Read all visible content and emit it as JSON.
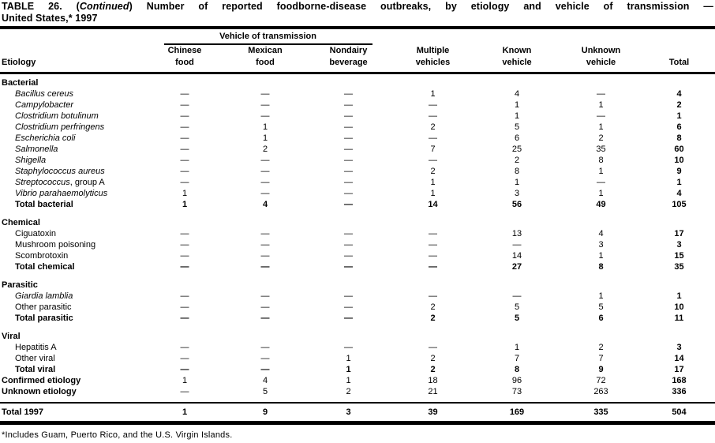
{
  "title": {
    "line1_prefix": "TABLE 26. (",
    "line1_continued": "Continued",
    "line1_suffix": ") Number of reported foodborne-disease outbreaks, by etiology and vehicle of transmission —",
    "line2": "United States,* 1997"
  },
  "header": {
    "spanner": "Vehicle of transmission",
    "etiology": "Etiology",
    "total": "Total",
    "columns": [
      {
        "key": "chinese-food",
        "line1": "Chinese",
        "line2": "food"
      },
      {
        "key": "mexican-food",
        "line1": "Mexican",
        "line2": "food"
      },
      {
        "key": "nondairy-beverage",
        "line1": "Nondairy",
        "line2": "beverage"
      },
      {
        "key": "multiple-vehicles",
        "line1": "Multiple",
        "line2": "vehicles"
      },
      {
        "key": "known-vehicle",
        "line1": "Known",
        "line2": "vehicle"
      },
      {
        "key": "unknown-vehicle",
        "line1": "Unknown",
        "line2": "vehicle"
      }
    ]
  },
  "sections": [
    {
      "label": "Bacterial",
      "rows": [
        {
          "label": "Bacillus cereus",
          "italic": true,
          "bold": false,
          "values": [
            "—",
            "—",
            "—",
            "1",
            "4",
            "—",
            "4"
          ]
        },
        {
          "label": "Campylobacter",
          "italic": true,
          "bold": false,
          "values": [
            "—",
            "—",
            "—",
            "—",
            "1",
            "1",
            "2"
          ]
        },
        {
          "label": "Clostridium botulinum",
          "italic": true,
          "bold": false,
          "values": [
            "—",
            "—",
            "—",
            "—",
            "1",
            "—",
            "1"
          ]
        },
        {
          "label": "Clostridium perfringens",
          "italic": true,
          "bold": false,
          "values": [
            "—",
            "1",
            "—",
            "2",
            "5",
            "1",
            "6"
          ]
        },
        {
          "label": "Escherichia coli",
          "italic": true,
          "bold": false,
          "values": [
            "—",
            "1",
            "—",
            "—",
            "6",
            "2",
            "8"
          ]
        },
        {
          "label": "Salmonella",
          "italic": true,
          "bold": false,
          "values": [
            "—",
            "2",
            "—",
            "7",
            "25",
            "35",
            "60"
          ]
        },
        {
          "label": "Shigella",
          "italic": true,
          "bold": false,
          "values": [
            "—",
            "—",
            "—",
            "—",
            "2",
            "8",
            "10"
          ]
        },
        {
          "label": "Staphylococcus aureus",
          "italic": true,
          "bold": false,
          "values": [
            "—",
            "—",
            "—",
            "2",
            "8",
            "1",
            "9"
          ]
        },
        {
          "label": "Streptococcus",
          "suffix": ", group A",
          "italic": true,
          "bold": false,
          "values": [
            "—",
            "—",
            "—",
            "1",
            "1",
            "—",
            "1"
          ]
        },
        {
          "label": "Vibrio parahaemolyticus",
          "italic": true,
          "bold": false,
          "values": [
            "1",
            "—",
            "—",
            "1",
            "3",
            "1",
            "4"
          ]
        },
        {
          "label": "Total bacterial",
          "italic": false,
          "bold": true,
          "values": [
            "1",
            "4",
            "—",
            "14",
            "56",
            "49",
            "105"
          ]
        }
      ]
    },
    {
      "label": "Chemical",
      "rows": [
        {
          "label": "Ciguatoxin",
          "italic": false,
          "bold": false,
          "values": [
            "—",
            "—",
            "—",
            "—",
            "13",
            "4",
            "17"
          ]
        },
        {
          "label": "Mushroom poisoning",
          "italic": false,
          "bold": false,
          "values": [
            "—",
            "—",
            "—",
            "—",
            "—",
            "3",
            "3"
          ]
        },
        {
          "label": "Scombrotoxin",
          "italic": false,
          "bold": false,
          "values": [
            "—",
            "—",
            "—",
            "—",
            "14",
            "1",
            "15"
          ]
        },
        {
          "label": "Total chemical",
          "italic": false,
          "bold": true,
          "values": [
            "—",
            "—",
            "—",
            "—",
            "27",
            "8",
            "35"
          ]
        }
      ]
    },
    {
      "label": "Parasitic",
      "rows": [
        {
          "label": "Giardia lamblia",
          "italic": true,
          "bold": false,
          "values": [
            "—",
            "—",
            "—",
            "—",
            "—",
            "1",
            "1"
          ]
        },
        {
          "label": "Other parasitic",
          "italic": false,
          "bold": false,
          "values": [
            "—",
            "—",
            "—",
            "2",
            "5",
            "5",
            "10"
          ]
        },
        {
          "label": "Total parasitic",
          "italic": false,
          "bold": true,
          "values": [
            "—",
            "—",
            "—",
            "2",
            "5",
            "6",
            "11"
          ]
        }
      ]
    },
    {
      "label": "Viral",
      "rows": [
        {
          "label": "Hepatitis A",
          "italic": false,
          "bold": false,
          "values": [
            "—",
            "—",
            "—",
            "—",
            "1",
            "2",
            "3"
          ]
        },
        {
          "label": "Other viral",
          "italic": false,
          "bold": false,
          "values": [
            "—",
            "—",
            "1",
            "2",
            "7",
            "7",
            "14"
          ]
        },
        {
          "label": "Total viral",
          "italic": false,
          "bold": true,
          "values": [
            "—",
            "—",
            "1",
            "2",
            "8",
            "9",
            "17"
          ]
        }
      ]
    }
  ],
  "summary_rows": [
    {
      "label": "Confirmed etiology",
      "italic": false,
      "bold": false,
      "values": [
        "1",
        "4",
        "1",
        "18",
        "96",
        "72",
        "168"
      ]
    },
    {
      "label": "Unknown etiology",
      "italic": false,
      "bold": false,
      "values": [
        "—",
        "5",
        "2",
        "21",
        "73",
        "263",
        "336"
      ]
    }
  ],
  "grand_total": {
    "label": "Total 1997",
    "italic": false,
    "bold": true,
    "values": [
      "1",
      "9",
      "3",
      "39",
      "169",
      "335",
      "504"
    ]
  },
  "footnote": "*Includes Guam, Puerto Rico, and the U.S. Virgin Islands."
}
